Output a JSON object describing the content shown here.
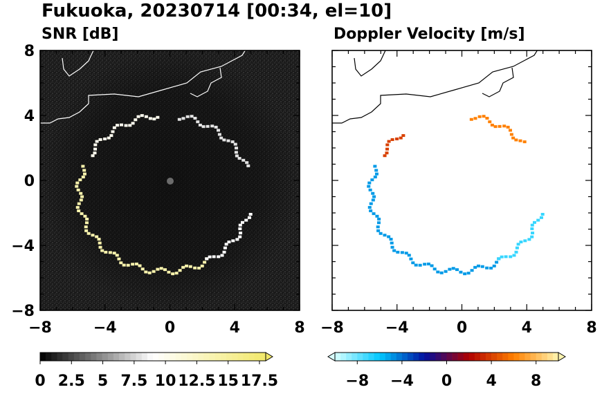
{
  "figure": {
    "title": "Fukuoka, 20230714 [00:34, el=10]"
  },
  "chart_data": [
    {
      "type": "heatmap",
      "title": "SNR [dB]",
      "x_ticks": [
        "−8",
        "−4",
        "0",
        "4",
        "8"
      ],
      "y_ticks": [
        "8",
        "4",
        "0",
        "−4",
        "−8"
      ],
      "xlim": [
        -8,
        8
      ],
      "ylim": [
        -8,
        8
      ],
      "colorbar": {
        "range": [
          0,
          18
        ],
        "extend": "max",
        "colors": [
          "#000000",
          "#ffffff",
          "#f2e86a"
        ],
        "tick_labels": [
          "0",
          "2.5",
          "5",
          "7.5",
          "10",
          "12.5",
          "15",
          "17.5"
        ]
      },
      "echo_ring": {
        "center": [
          -0.3,
          -0.8
        ],
        "radius_x": 5.3,
        "radius_y": 4.8,
        "segments": [
          {
            "from_deg": 160,
            "to_deg": 300,
            "value": 14
          },
          {
            "from_deg": 300,
            "to_deg": 345,
            "value": 9
          },
          {
            "from_deg": 20,
            "to_deg": 80,
            "value": 8
          },
          {
            "from_deg": 95,
            "to_deg": 150,
            "value": 10
          }
        ]
      }
    },
    {
      "type": "heatmap",
      "title": "Doppler Velocity [m/s]",
      "x_ticks": [
        "−8",
        "−4",
        "0",
        "4",
        "8"
      ],
      "y_ticks": [],
      "xlim": [
        -8,
        8
      ],
      "ylim": [
        -8,
        8
      ],
      "colorbar": {
        "range": [
          -10,
          10
        ],
        "extend": "both",
        "colors": [
          "#d9ffff",
          "#00c8ff",
          "#0010a0",
          "#b00000",
          "#ff8000",
          "#fff5b0"
        ],
        "tick_labels": [
          "−8",
          "−4",
          "0",
          "4",
          "8"
        ]
      },
      "echo_ring": {
        "center": [
          -0.3,
          -0.8
        ],
        "radius_x": 5.3,
        "radius_y": 4.8,
        "segments": [
          {
            "from_deg": 160,
            "to_deg": 300,
            "value": -5
          },
          {
            "from_deg": 300,
            "to_deg": 345,
            "value": -7
          },
          {
            "from_deg": 40,
            "to_deg": 80,
            "value": 6
          },
          {
            "from_deg": 130,
            "to_deg": 150,
            "value": 4
          }
        ]
      }
    }
  ]
}
